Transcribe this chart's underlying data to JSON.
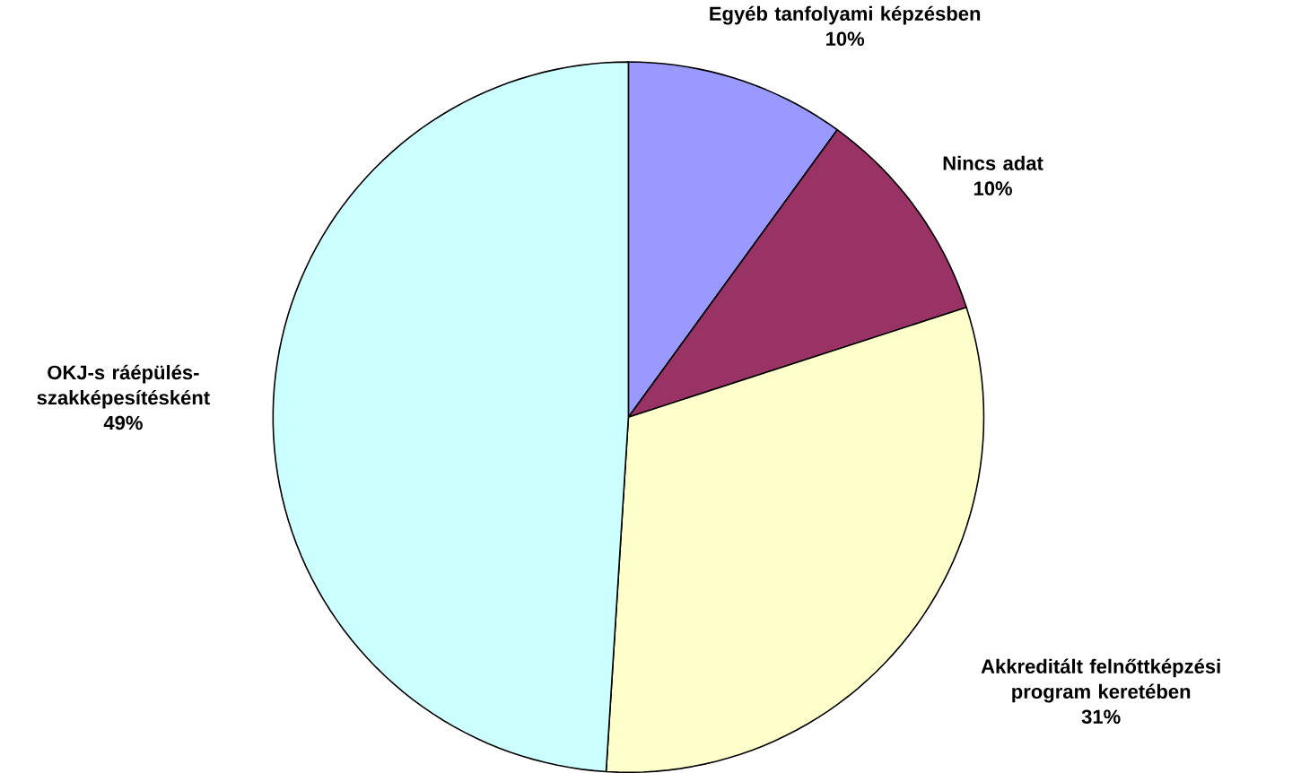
{
  "chart_data": {
    "type": "pie",
    "categories": [
      "Egyéb tanfolyami képzésben",
      "Nincs adat",
      "Akkreditált felnőttképzési program keretében",
      "OKJ-s ráépülés-szakképesítésként"
    ],
    "values": [
      10,
      10,
      31,
      49
    ],
    "value_labels": [
      "10%",
      "10%",
      "31%",
      "49%"
    ],
    "colors": [
      "#9999ff",
      "#993366",
      "#ffffcc",
      "#ccffff"
    ]
  }
}
